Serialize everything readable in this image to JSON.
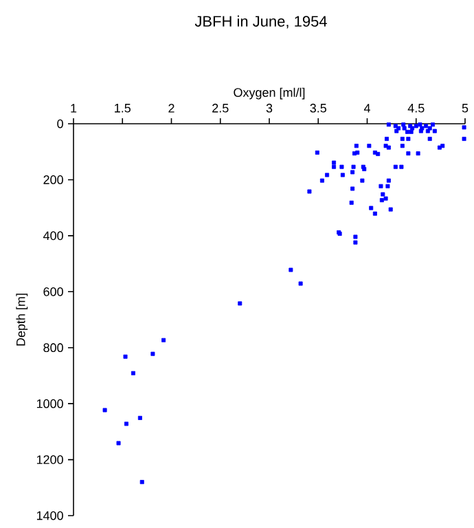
{
  "chart_data": {
    "type": "scatter",
    "title": "JBFH in June, 1954",
    "xlabel": "Oxygen [ml/l]",
    "ylabel": "Depth [m]",
    "xlim": [
      1,
      5
    ],
    "xticks": [
      1,
      1.5,
      2,
      2.5,
      3,
      3.5,
      4,
      4.5,
      5
    ],
    "ylim": [
      1400,
      0
    ],
    "yticks": [
      0,
      200,
      400,
      600,
      800,
      1000,
      1200,
      1400
    ],
    "grid": false,
    "marker": "square",
    "color": "#0000ff",
    "x": [
      4.22,
      4.29,
      4.32,
      4.37,
      4.38,
      4.44,
      4.46,
      4.5,
      4.54,
      4.56,
      4.6,
      4.64,
      4.67,
      4.69,
      4.3,
      4.41,
      4.45,
      4.55,
      4.62,
      4.99,
      4.2,
      4.36,
      4.42,
      4.64,
      4.99,
      3.89,
      4.02,
      4.19,
      4.36,
      4.77,
      4.74,
      4.22,
      3.49,
      3.87,
      3.9,
      4.08,
      4.11,
      4.42,
      4.52,
      3.66,
      3.66,
      3.74,
      3.86,
      3.96,
      3.97,
      4.29,
      4.35,
      3.85,
      3.59,
      3.75,
      3.54,
      3.95,
      4.22,
      4.14,
      4.21,
      3.41,
      3.85,
      4.16,
      4.19,
      4.15,
      3.84,
      4.04,
      4.24,
      4.08,
      3.71,
      3.72,
      3.88,
      3.88,
      3.22,
      3.32,
      2.7,
      1.92,
      1.81,
      1.53,
      1.61,
      1.32,
      1.68,
      1.54,
      1.46,
      1.7
    ],
    "values": [
      3,
      8,
      16,
      3,
      16,
      8,
      16,
      8,
      3,
      16,
      8,
      16,
      3,
      26,
      26,
      29,
      29,
      26,
      26,
      13,
      54,
      54,
      54,
      54,
      54,
      79,
      79,
      79,
      79,
      79,
      85,
      85,
      103,
      106,
      103,
      103,
      108,
      106,
      106,
      139,
      154,
      154,
      154,
      154,
      162,
      154,
      154,
      173,
      183,
      183,
      203,
      203,
      203,
      223,
      223,
      242,
      232,
      252,
      267,
      273,
      282,
      301,
      306,
      321,
      388,
      393,
      404,
      424,
      522,
      571,
      642,
      773,
      822,
      832,
      891,
      1023,
      1051,
      1072,
      1141,
      1280
    ]
  }
}
